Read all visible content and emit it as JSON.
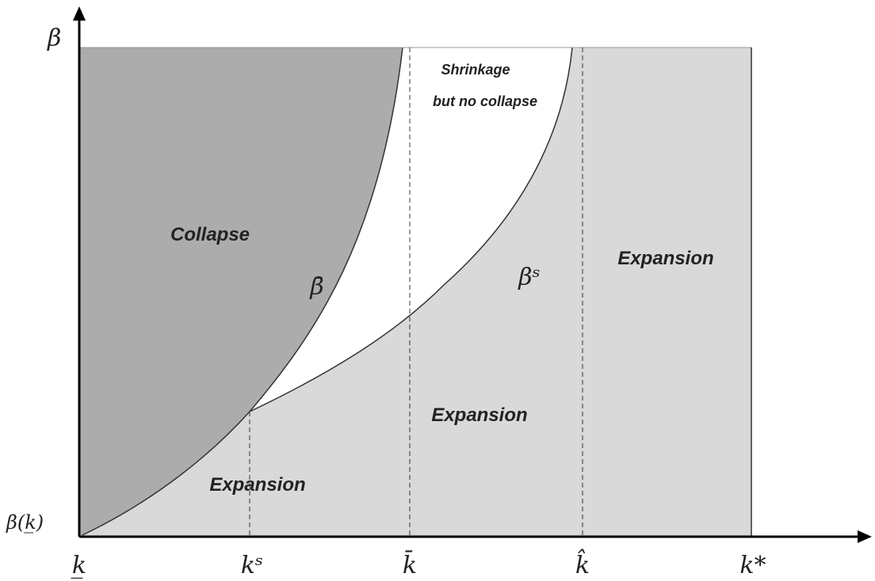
{
  "axes": {
    "y_label": "β",
    "origin_label": "β(k̲)",
    "x_labels": [
      "k̲",
      "kˢ",
      "k̄",
      "k̂",
      "k*"
    ]
  },
  "curves": {
    "beta_bar": "β̄",
    "beta_s": "βˢ"
  },
  "regions": {
    "collapse": "Collapse",
    "shrinkage": [
      "Shrinkage",
      "but no collapse"
    ],
    "expansion": [
      "Expansion",
      "Expansion",
      "Expansion"
    ]
  }
}
